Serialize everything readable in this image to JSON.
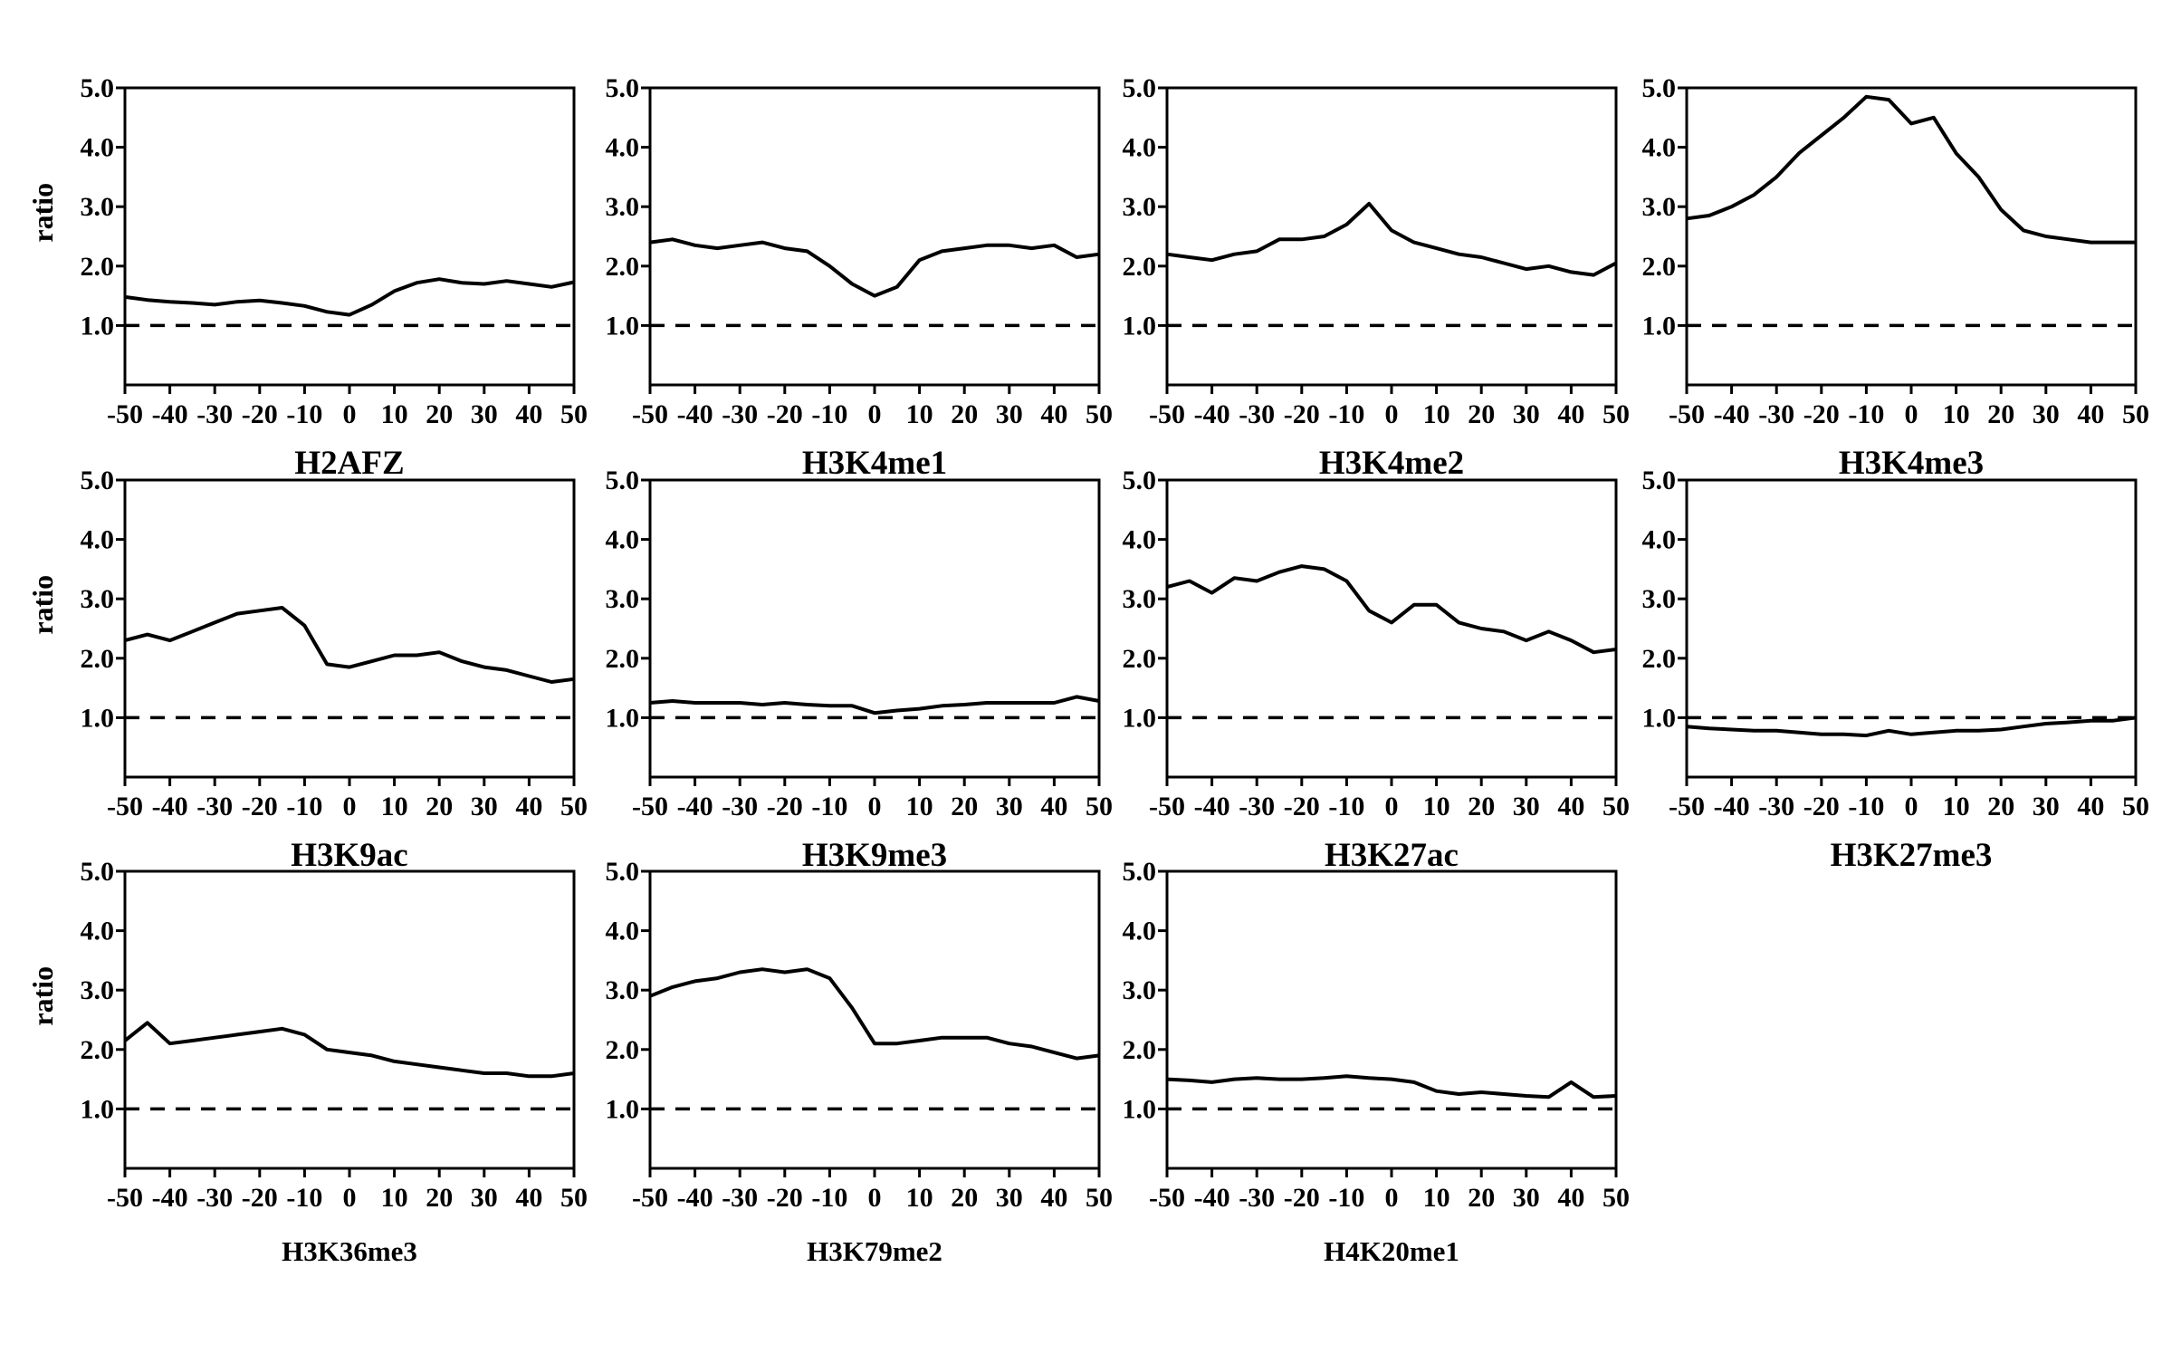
{
  "figure": {
    "ylabel": "ratio",
    "yticks": [
      "1.0",
      "2.0",
      "3.0",
      "4.0",
      "5.0"
    ],
    "xticks": [
      "-50",
      "-40",
      "-30",
      "-20",
      "-10",
      "0",
      "10",
      "20",
      "30",
      "40",
      "50"
    ],
    "reference_line": 1.0,
    "line_color": "#000000"
  },
  "chart_data": [
    {
      "type": "line",
      "title": "H2AFZ",
      "ylabel": "ratio",
      "xlim": [
        -50,
        50
      ],
      "ylim": [
        0,
        5
      ],
      "reference_y": 1.0,
      "series": [
        {
          "x": [
            -50,
            -45,
            -40,
            -35,
            -30,
            -25,
            -20,
            -15,
            -10,
            -5,
            0,
            5,
            10,
            15,
            20,
            25,
            30,
            35,
            40,
            45,
            50
          ],
          "values": [
            1.48,
            1.43,
            1.4,
            1.38,
            1.35,
            1.4,
            1.42,
            1.38,
            1.33,
            1.23,
            1.18,
            1.35,
            1.58,
            1.72,
            1.78,
            1.72,
            1.7,
            1.75,
            1.7,
            1.65,
            1.73
          ]
        }
      ]
    },
    {
      "type": "line",
      "title": "H3K4me1",
      "ylabel": "",
      "xlim": [
        -50,
        50
      ],
      "ylim": [
        0,
        5
      ],
      "reference_y": 1.0,
      "series": [
        {
          "x": [
            -50,
            -45,
            -40,
            -35,
            -30,
            -25,
            -20,
            -15,
            -10,
            -5,
            0,
            5,
            10,
            15,
            20,
            25,
            30,
            35,
            40,
            45,
            50
          ],
          "values": [
            2.4,
            2.45,
            2.35,
            2.3,
            2.35,
            2.4,
            2.3,
            2.25,
            2.0,
            1.7,
            1.5,
            1.65,
            2.1,
            2.25,
            2.3,
            2.35,
            2.35,
            2.3,
            2.35,
            2.15,
            2.2
          ]
        }
      ]
    },
    {
      "type": "line",
      "title": "H3K4me2",
      "ylabel": "",
      "xlim": [
        -50,
        50
      ],
      "ylim": [
        0,
        5
      ],
      "reference_y": 1.0,
      "series": [
        {
          "x": [
            -50,
            -45,
            -40,
            -35,
            -30,
            -25,
            -20,
            -15,
            -10,
            -5,
            0,
            5,
            10,
            15,
            20,
            25,
            30,
            35,
            40,
            45,
            50
          ],
          "values": [
            2.2,
            2.15,
            2.1,
            2.2,
            2.25,
            2.45,
            2.45,
            2.5,
            2.7,
            3.05,
            2.6,
            2.4,
            2.3,
            2.2,
            2.15,
            2.05,
            1.95,
            2.0,
            1.9,
            1.85,
            2.05
          ]
        }
      ]
    },
    {
      "type": "line",
      "title": "H3K4me3",
      "ylabel": "",
      "xlim": [
        -50,
        50
      ],
      "ylim": [
        0,
        5
      ],
      "reference_y": 1.0,
      "series": [
        {
          "x": [
            -50,
            -45,
            -40,
            -35,
            -30,
            -25,
            -20,
            -15,
            -10,
            -5,
            0,
            5,
            10,
            15,
            20,
            25,
            30,
            35,
            40,
            45,
            50
          ],
          "values": [
            2.8,
            2.85,
            3.0,
            3.2,
            3.5,
            3.9,
            4.2,
            4.5,
            4.85,
            4.8,
            4.4,
            4.5,
            3.9,
            3.5,
            2.95,
            2.6,
            2.5,
            2.45,
            2.4,
            2.4,
            2.4
          ]
        }
      ]
    },
    {
      "type": "line",
      "title": "H3K9ac",
      "ylabel": "ratio",
      "xlim": [
        -50,
        50
      ],
      "ylim": [
        0,
        5
      ],
      "reference_y": 1.0,
      "series": [
        {
          "x": [
            -50,
            -45,
            -40,
            -35,
            -30,
            -25,
            -20,
            -15,
            -10,
            -5,
            0,
            5,
            10,
            15,
            20,
            25,
            30,
            35,
            40,
            45,
            50
          ],
          "values": [
            2.3,
            2.4,
            2.3,
            2.45,
            2.6,
            2.75,
            2.8,
            2.85,
            2.55,
            1.9,
            1.85,
            1.95,
            2.05,
            2.05,
            2.1,
            1.95,
            1.85,
            1.8,
            1.7,
            1.6,
            1.65
          ]
        }
      ]
    },
    {
      "type": "line",
      "title": "H3K9me3",
      "ylabel": "",
      "xlim": [
        -50,
        50
      ],
      "ylim": [
        0,
        5
      ],
      "reference_y": 1.0,
      "series": [
        {
          "x": [
            -50,
            -45,
            -40,
            -35,
            -30,
            -25,
            -20,
            -15,
            -10,
            -5,
            0,
            5,
            10,
            15,
            20,
            25,
            30,
            35,
            40,
            45,
            50
          ],
          "values": [
            1.25,
            1.28,
            1.25,
            1.25,
            1.25,
            1.22,
            1.25,
            1.22,
            1.2,
            1.2,
            1.08,
            1.12,
            1.15,
            1.2,
            1.22,
            1.25,
            1.25,
            1.25,
            1.25,
            1.35,
            1.28
          ]
        }
      ]
    },
    {
      "type": "line",
      "title": "H3K27ac",
      "ylabel": "",
      "xlim": [
        -50,
        50
      ],
      "ylim": [
        0,
        5
      ],
      "reference_y": 1.0,
      "series": [
        {
          "x": [
            -50,
            -45,
            -40,
            -35,
            -30,
            -25,
            -20,
            -15,
            -10,
            -5,
            0,
            5,
            10,
            15,
            20,
            25,
            30,
            35,
            40,
            45,
            50
          ],
          "values": [
            3.2,
            3.3,
            3.1,
            3.35,
            3.3,
            3.45,
            3.55,
            3.5,
            3.3,
            2.8,
            2.6,
            2.9,
            2.9,
            2.6,
            2.5,
            2.45,
            2.3,
            2.45,
            2.3,
            2.1,
            2.15
          ]
        }
      ]
    },
    {
      "type": "line",
      "title": "H3K27me3",
      "ylabel": "",
      "xlim": [
        -50,
        50
      ],
      "ylim": [
        0,
        5
      ],
      "reference_y": 1.0,
      "series": [
        {
          "x": [
            -50,
            -45,
            -40,
            -35,
            -30,
            -25,
            -20,
            -15,
            -10,
            -5,
            0,
            5,
            10,
            15,
            20,
            25,
            30,
            35,
            40,
            45,
            50
          ],
          "values": [
            0.85,
            0.82,
            0.8,
            0.78,
            0.78,
            0.75,
            0.72,
            0.72,
            0.7,
            0.78,
            0.72,
            0.75,
            0.78,
            0.78,
            0.8,
            0.85,
            0.9,
            0.92,
            0.95,
            0.95,
            1.0
          ]
        }
      ]
    },
    {
      "type": "line",
      "title": "H3K36me3",
      "ylabel": "ratio",
      "xlim": [
        -50,
        50
      ],
      "ylim": [
        0,
        5
      ],
      "reference_y": 1.0,
      "series": [
        {
          "x": [
            -50,
            -45,
            -40,
            -35,
            -30,
            -25,
            -20,
            -15,
            -10,
            -5,
            0,
            5,
            10,
            15,
            20,
            25,
            30,
            35,
            40,
            45,
            50
          ],
          "values": [
            2.15,
            2.45,
            2.1,
            2.15,
            2.2,
            2.25,
            2.3,
            2.35,
            2.25,
            2.0,
            1.95,
            1.9,
            1.8,
            1.75,
            1.7,
            1.65,
            1.6,
            1.6,
            1.55,
            1.55,
            1.6
          ]
        }
      ]
    },
    {
      "type": "line",
      "title": "H3K79me2",
      "ylabel": "",
      "xlim": [
        -50,
        50
      ],
      "ylim": [
        0,
        5
      ],
      "reference_y": 1.0,
      "series": [
        {
          "x": [
            -50,
            -45,
            -40,
            -35,
            -30,
            -25,
            -20,
            -15,
            -10,
            -5,
            0,
            5,
            10,
            15,
            20,
            25,
            30,
            35,
            40,
            45,
            50
          ],
          "values": [
            2.9,
            3.05,
            3.15,
            3.2,
            3.3,
            3.35,
            3.3,
            3.35,
            3.2,
            2.7,
            2.1,
            2.1,
            2.15,
            2.2,
            2.2,
            2.2,
            2.1,
            2.05,
            1.95,
            1.85,
            1.9
          ]
        }
      ]
    },
    {
      "type": "line",
      "title": "H4K20me1",
      "ylabel": "",
      "xlim": [
        -50,
        50
      ],
      "ylim": [
        0,
        5
      ],
      "reference_y": 1.0,
      "series": [
        {
          "x": [
            -50,
            -45,
            -40,
            -35,
            -30,
            -25,
            -20,
            -15,
            -10,
            -5,
            0,
            5,
            10,
            15,
            20,
            25,
            30,
            35,
            40,
            45,
            50
          ],
          "values": [
            1.5,
            1.48,
            1.45,
            1.5,
            1.52,
            1.5,
            1.5,
            1.52,
            1.55,
            1.52,
            1.5,
            1.45,
            1.3,
            1.25,
            1.28,
            1.25,
            1.22,
            1.2,
            1.45,
            1.2,
            1.22
          ]
        }
      ]
    }
  ]
}
